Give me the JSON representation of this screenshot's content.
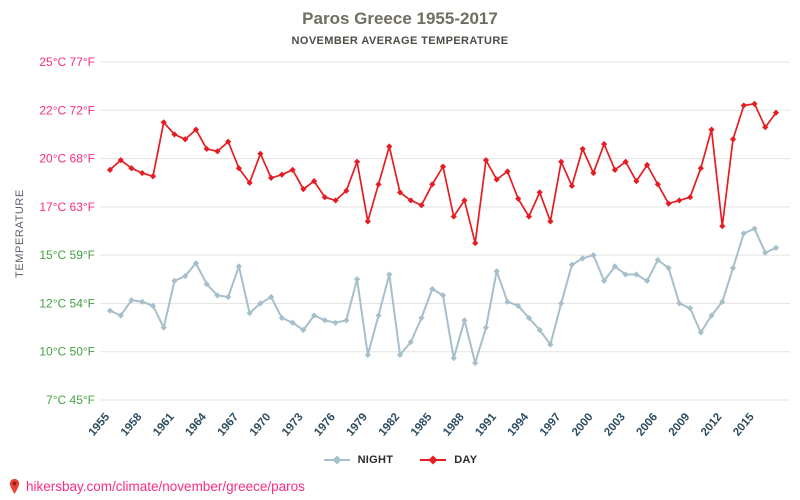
{
  "page": {
    "url": "hikersbay.com/climate/november/greece/paros"
  },
  "chart_data": {
    "type": "line",
    "title": "Paros Greece 1955-2017",
    "subtitle": "NOVEMBER AVERAGE TEMPERATURE",
    "ylabel": "TEMPERATURE",
    "xlabel": "",
    "grid": true,
    "legend_position": "bottom",
    "x_range": [
      1955,
      2017
    ],
    "x_tick_labels": [
      "1955",
      "1958",
      "1961",
      "1964",
      "1967",
      "1970",
      "1973",
      "1976",
      "1979",
      "1982",
      "1985",
      "1988",
      "1991",
      "1994",
      "1997",
      "2000",
      "2003",
      "2006",
      "2009",
      "2012",
      "2015"
    ],
    "y_ticks": [
      {
        "c": 25,
        "f": 77,
        "label": "25°C 77°F",
        "color": "#fb2d80"
      },
      {
        "c": 22,
        "f": 72,
        "label": "22°C 72°F",
        "color": "#fb2d80"
      },
      {
        "c": 20,
        "f": 68,
        "label": "20°C 68°F",
        "color": "#fb2d80"
      },
      {
        "c": 17,
        "f": 63,
        "label": "17°C 63°F",
        "color": "#fb2d80"
      },
      {
        "c": 15,
        "f": 59,
        "label": "15°C 59°F",
        "color": "#44a244"
      },
      {
        "c": 12,
        "f": 54,
        "label": "12°C 54°F",
        "color": "#44a244"
      },
      {
        "c": 10,
        "f": 50,
        "label": "10°C 50°F",
        "color": "#44a244"
      },
      {
        "c": 7,
        "f": 45,
        "label": "7°C 45°F",
        "color": "#44a244"
      }
    ],
    "axis_colors": {
      "x_tick_color": "#2e4d60",
      "grid_color": "#e3e3e3"
    },
    "series": [
      {
        "name": "NIGHT",
        "color": "#a6bfcb",
        "values": [
          11.7,
          11.5,
          12.2,
          12.1,
          11.9,
          11.0,
          13.4,
          13.7,
          14.5,
          13.2,
          12.5,
          12.4,
          14.3,
          11.6,
          12.0,
          12.4,
          11.4,
          11.2,
          10.9,
          11.5,
          11.3,
          11.2,
          11.3,
          13.5,
          9.8,
          11.5,
          13.8,
          9.8,
          10.4,
          11.4,
          12.9,
          12.5,
          9.6,
          11.3,
          9.3,
          11.0,
          14.0,
          12.1,
          11.9,
          11.4,
          10.9,
          10.3,
          12.0,
          14.4,
          14.8,
          15.0,
          13.4,
          14.3,
          13.8,
          13.8,
          13.4,
          14.7,
          14.2,
          12.0,
          11.8,
          10.8,
          11.5,
          12.1,
          14.2,
          15.9,
          16.1,
          15.1,
          15.3
        ]
      },
      {
        "name": "DAY",
        "color": "#e51d23",
        "values": [
          19.3,
          19.9,
          19.4,
          19.1,
          18.9,
          21.5,
          21.0,
          20.8,
          21.2,
          20.4,
          20.3,
          20.7,
          19.4,
          18.5,
          20.2,
          18.8,
          19.0,
          19.3,
          18.1,
          18.6,
          17.6,
          17.4,
          18.0,
          19.8,
          16.4,
          18.4,
          20.5,
          17.9,
          17.4,
          17.1,
          18.4,
          19.5,
          16.6,
          17.4,
          15.5,
          19.9,
          18.7,
          19.2,
          17.5,
          16.6,
          17.9,
          16.4,
          19.8,
          18.3,
          20.4,
          19.1,
          20.6,
          19.3,
          19.8,
          18.6,
          19.6,
          18.4,
          17.2,
          17.4,
          17.6,
          19.4,
          21.2,
          16.2,
          20.8,
          22.3,
          22.4,
          21.3,
          21.9
        ]
      }
    ]
  }
}
